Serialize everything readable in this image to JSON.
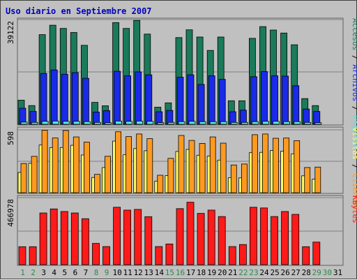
{
  "title": "Uso diario en Septiembre 2007",
  "colors": {
    "title": "#0000c0",
    "accesos": "#1a7a5a",
    "archivos": "#1a2ae8",
    "paginas": "#5ae0e0",
    "visitas": "#ffff60",
    "clientes": "#ff9a20",
    "kbytes": "#ff1a1a",
    "weekday_label": "#000000",
    "weekend_label": "#2a8a4a",
    "separator": "#000000",
    "axis_value": "#000000"
  },
  "legend": {
    "top": [
      "Accesos",
      "Archivos",
      "Páginas"
    ],
    "middle": [
      "Visitas",
      "Clientes"
    ],
    "bottom": [
      "KBytes"
    ],
    "separator": "/"
  },
  "chart_data": [
    {
      "type": "bar",
      "title": "Uso diario en Septiembre 2007",
      "panel": "top",
      "ymax_label": "39122",
      "ylim": [
        0,
        39122
      ],
      "categories": [
        "1",
        "2",
        "3",
        "4",
        "5",
        "6",
        "7",
        "8",
        "9",
        "10",
        "11",
        "12",
        "13",
        "14",
        "15",
        "16",
        "17",
        "18",
        "19",
        "20",
        "21",
        "22",
        "23",
        "24",
        "25",
        "26",
        "27",
        "28",
        "29",
        "30",
        "31"
      ],
      "weekend_days": [
        "1",
        "2",
        "8",
        "9",
        "15",
        "16",
        "22",
        "23",
        "29",
        "30"
      ],
      "series": [
        {
          "name": "Accesos",
          "values": [
            9000,
            7000,
            33500,
            37000,
            35800,
            34300,
            29500,
            8200,
            6900,
            38000,
            35800,
            38800,
            33700,
            6400,
            8000,
            32400,
            35300,
            32600,
            27600,
            32600,
            8800,
            8800,
            32100,
            36500,
            35200,
            34100,
            29700,
            9600,
            7000,
            null,
            null
          ]
        },
        {
          "name": "Archivos",
          "values": [
            6000,
            4800,
            19000,
            20300,
            18700,
            19300,
            17200,
            4600,
            5100,
            19800,
            18100,
            19600,
            18500,
            4700,
            5200,
            17600,
            18500,
            14900,
            18100,
            16800,
            4700,
            5300,
            17800,
            19700,
            18100,
            18000,
            14400,
            5700,
            4800,
            null,
            null
          ]
        },
        {
          "name": "Páginas",
          "values": [
            800,
            700,
            1100,
            1200,
            1100,
            1100,
            1000,
            700,
            600,
            1200,
            1100,
            1200,
            1100,
            600,
            700,
            1000,
            1100,
            1000,
            1000,
            1000,
            700,
            700,
            1000,
            1100,
            1100,
            1000,
            1000,
            700,
            600,
            null,
            null
          ]
        }
      ]
    },
    {
      "type": "bar",
      "panel": "middle",
      "ymax_label": "598",
      "ylim": [
        0,
        598
      ],
      "series": [
        {
          "name": "Visitas",
          "values": [
            193,
            280,
            454,
            430,
            430,
            451,
            359,
            145,
            239,
            491,
            361,
            420,
            399,
            110,
            163,
            393,
            412,
            357,
            348,
            310,
            142,
            141,
            381,
            384,
            402,
            396,
            370,
            161,
            129,
            null,
            null
          ]
        },
        {
          "name": "Clientes",
          "values": [
            278,
            346,
            595,
            521,
            592,
            531,
            481,
            175,
            347,
            580,
            534,
            559,
            514,
            166,
            327,
            545,
            498,
            469,
            531,
            472,
            264,
            273,
            552,
            559,
            518,
            520,
            496,
            240,
            244,
            null,
            null
          ]
        }
      ]
    },
    {
      "type": "bar",
      "panel": "bottom",
      "ymax_label": "466978",
      "ylim": [
        0,
        466978
      ],
      "series": [
        {
          "name": "KBytes",
          "values": [
            125000,
            125000,
            360000,
            388000,
            370000,
            360000,
            320000,
            148000,
            126000,
            400000,
            380000,
            385000,
            334000,
            126000,
            144000,
            390000,
            435000,
            357000,
            380000,
            335000,
            126000,
            140000,
            400000,
            395000,
            335000,
            370000,
            350000,
            125000,
            157000,
            null,
            null
          ]
        }
      ]
    }
  ]
}
